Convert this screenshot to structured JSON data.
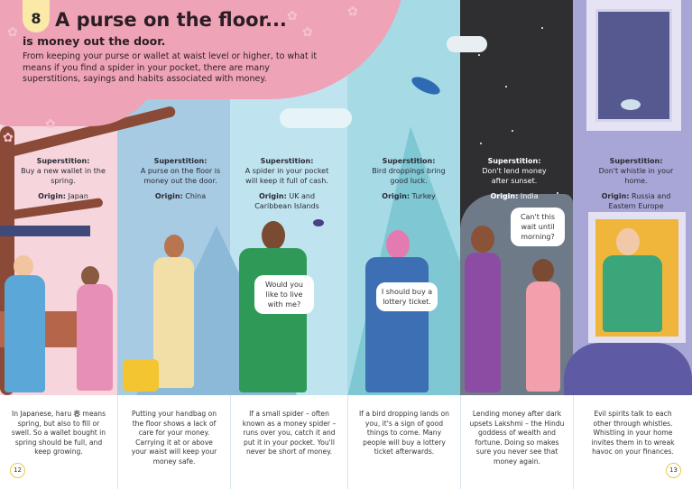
{
  "header": {
    "number": "8",
    "title": "A purse on the floor...",
    "subtitle": "is money out the door.",
    "intro": "From keeping your purse or wallet at waist level or higher, to what it means if you find a spider in your pocket, there are many superstitions, sayings and habits associated with money."
  },
  "superstitions": [
    {
      "label": "Superstition:",
      "text": "Buy a new wallet in the spring.",
      "origin_label": "Origin:",
      "origin": "Japan",
      "explanation": "In Japanese, haru 春 means spring, but also to fill or swell. So a wallet bought in spring should be full, and keep growing."
    },
    {
      "label": "Superstition:",
      "text": "A purse on the floor is money out the door.",
      "origin_label": "Origin:",
      "origin": "China",
      "explanation": "Putting your handbag on the floor shows a lack of care for your money. Carrying it at or above your waist will keep your money safe."
    },
    {
      "label": "Superstition:",
      "text": "A spider in your pocket will keep it full of cash.",
      "origin_label": "Origin:",
      "origin": "UK and Caribbean Islands",
      "explanation": "If a small spider – often known as a money spider – runs over you, catch it and put it in your pocket. You'll never be short of money.",
      "bubble": "Would you like to live with me?"
    },
    {
      "label": "Superstition:",
      "text": "Bird droppings bring good luck.",
      "origin_label": "Origin:",
      "origin": "Turkey",
      "explanation": "If a bird dropping lands on you, it's a sign of good things to come. Many people will buy a lottery ticket afterwards.",
      "bubble": "I should buy a lottery ticket."
    },
    {
      "label": "Superstition:",
      "text": "Don't lend money after sunset.",
      "origin_label": "Origin:",
      "origin": "India",
      "explanation": "Lending money after dark upsets Lakshmi – the Hindu goddess of wealth and fortune. Doing so makes sure you never see that money again.",
      "bubble": "Can't this wait until morning?"
    },
    {
      "label": "Superstition:",
      "text": "Don't whistle in your home.",
      "origin_label": "Origin:",
      "origin": "Russia and Eastern Europe",
      "explanation": "Evil spirits talk to each other through whistles. Whistling in your home invites them in to wreak havoc on your finances."
    }
  ],
  "page_numbers": {
    "left": "12",
    "right": "13"
  },
  "colors": {
    "pink": "#efa3b7",
    "night": "#2f2f31",
    "lavender": "#a7a6d6",
    "page_ring": "#e6c84a"
  }
}
